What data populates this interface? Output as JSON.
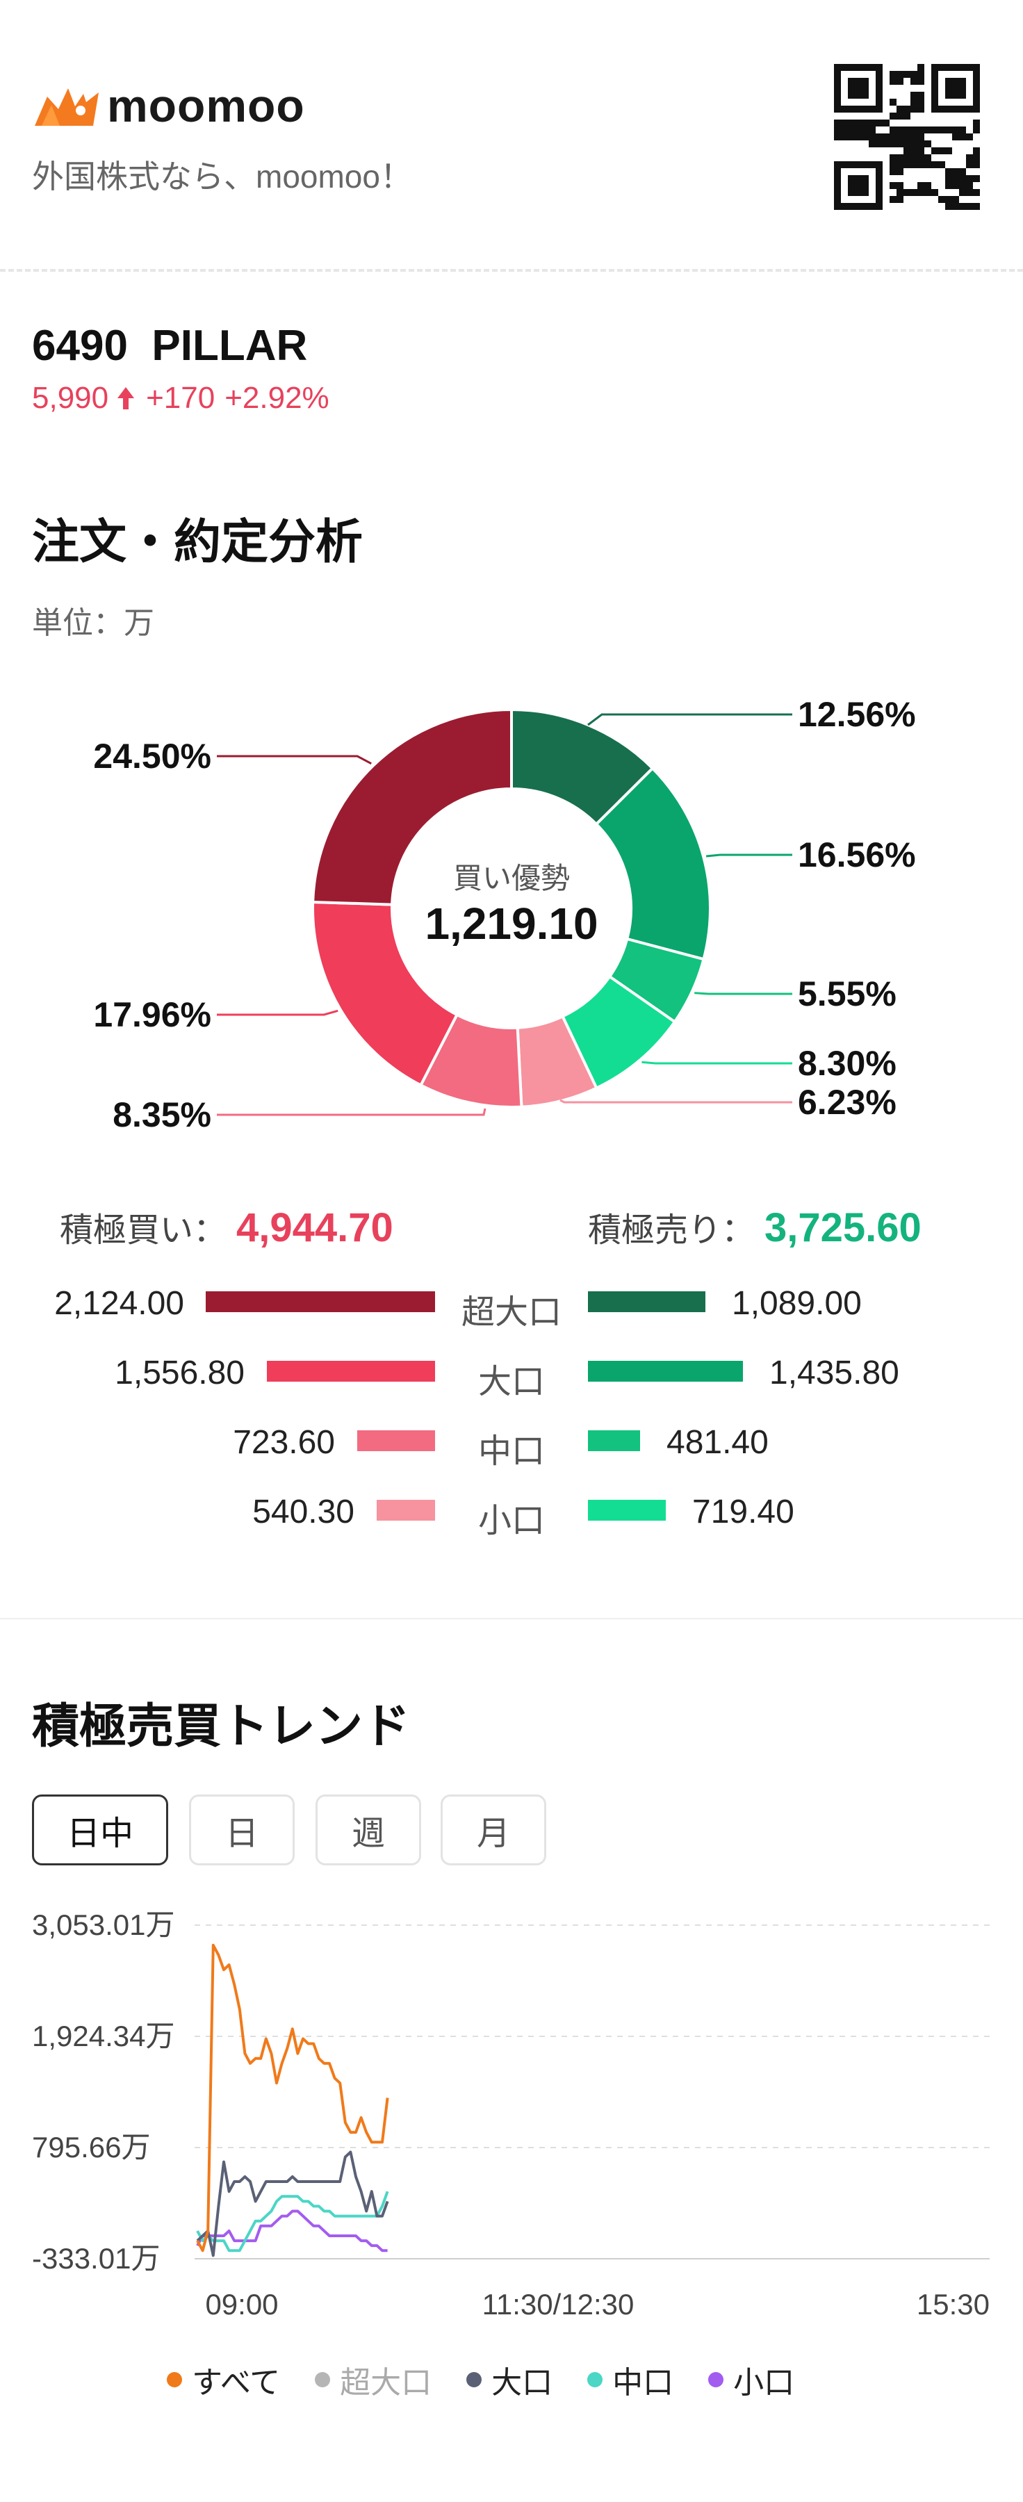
{
  "header": {
    "brand": "moomoo",
    "tagline": "外国株式なら、moomoo！"
  },
  "stock": {
    "code": "6490",
    "name": "PILLAR",
    "price": "5,990",
    "change": "+170",
    "change_pct": "+2.92%"
  },
  "order_analysis": {
    "title": "注文・約定分析",
    "unit": "単位：万",
    "center_label": "買い優勢",
    "center_value": "1,219.10",
    "buy_label": "積極買い：",
    "buy_total": "4,944.70",
    "sell_label": "積極売り：",
    "sell_total": "3,725.60",
    "rows": [
      {
        "category": "超大口",
        "buy": "2,124.00",
        "sell": "1,089.00"
      },
      {
        "category": "大口",
        "buy": "1,556.80",
        "sell": "1,435.80"
      },
      {
        "category": "中口",
        "buy": "723.60",
        "sell": "481.40"
      },
      {
        "category": "小口",
        "buy": "540.30",
        "sell": "719.40"
      }
    ]
  },
  "trend": {
    "title": "積極売買トレンド",
    "tabs": [
      "日中",
      "日",
      "週",
      "月"
    ],
    "active_tab": "日中",
    "legend": [
      "すべて",
      "超大口",
      "大口",
      "中口",
      "小口"
    ]
  },
  "colors": {
    "buy_super": "#9b1c31",
    "buy_large": "#ef3d5a",
    "buy_mid": "#f26b80",
    "buy_small": "#f7929f",
    "sell_super": "#176f4e",
    "sell_large": "#0aa56d",
    "sell_mid": "#12c27e",
    "sell_small": "#13dd93",
    "all": "#f07a1a",
    "super": "#b5b5b5",
    "large": "#5a6176",
    "mid": "#4bd6c6",
    "small": "#a35cf0"
  },
  "chart_data": [
    {
      "type": "pie",
      "title": "",
      "center_label": "買い優勢",
      "center_value": "1,219.10",
      "slices": [
        {
          "label": "超大口 売り",
          "value": 12.56,
          "display": "12.56%"
        },
        {
          "label": "大口 売り",
          "value": 16.56,
          "display": "16.56%"
        },
        {
          "label": "中口 売り",
          "value": 5.55,
          "display": "5.55%"
        },
        {
          "label": "小口 売り",
          "value": 8.3,
          "display": "8.30%"
        },
        {
          "label": "小口 買い",
          "value": 6.23,
          "display": "6.23%"
        },
        {
          "label": "中口 買い",
          "value": 8.35,
          "display": "8.35%"
        },
        {
          "label": "大口 買い",
          "value": 17.96,
          "display": "17.96%"
        },
        {
          "label": "超大口 買い",
          "value": 24.5,
          "display": "24.50%"
        }
      ]
    },
    {
      "type": "line",
      "title": "積極売買トレンド",
      "xlabel": "",
      "ylabel": "",
      "x_ticks": [
        "09:00",
        "11:30/12:30",
        "15:30"
      ],
      "y_ticks": [
        "3,053.01万",
        "1,924.34万",
        "795.66万",
        "-333.01万"
      ],
      "ylim": [
        -333.01,
        3053.01
      ],
      "x_domain": [
        0,
        300
      ],
      "grid": true,
      "series": [
        {
          "name": "すべて",
          "points": [
            [
              0,
              -150
            ],
            [
              2,
              -250
            ],
            [
              4,
              -50
            ],
            [
              6,
              2850
            ],
            [
              8,
              2750
            ],
            [
              10,
              2600
            ],
            [
              12,
              2650
            ],
            [
              14,
              2450
            ],
            [
              16,
              2200
            ],
            [
              18,
              1750
            ],
            [
              20,
              1650
            ],
            [
              22,
              1700
            ],
            [
              24,
              1700
            ],
            [
              26,
              1900
            ],
            [
              28,
              1750
            ],
            [
              30,
              1450
            ],
            [
              32,
              1650
            ],
            [
              34,
              1800
            ],
            [
              36,
              2000
            ],
            [
              38,
              1750
            ],
            [
              40,
              1900
            ],
            [
              42,
              1850
            ],
            [
              44,
              1850
            ],
            [
              46,
              1700
            ],
            [
              48,
              1650
            ],
            [
              50,
              1650
            ],
            [
              52,
              1500
            ],
            [
              54,
              1450
            ],
            [
              56,
              1050
            ],
            [
              58,
              950
            ],
            [
              60,
              950
            ],
            [
              62,
              1100
            ],
            [
              64,
              950
            ],
            [
              66,
              850
            ],
            [
              68,
              850
            ],
            [
              70,
              850
            ],
            [
              72,
              1300
            ]
          ]
        },
        {
          "name": "大口",
          "points": [
            [
              0,
              -150
            ],
            [
              2,
              -100
            ],
            [
              4,
              -50
            ],
            [
              6,
              -300
            ],
            [
              8,
              200
            ],
            [
              10,
              650
            ],
            [
              12,
              350
            ],
            [
              14,
              450
            ],
            [
              16,
              450
            ],
            [
              18,
              500
            ],
            [
              20,
              450
            ],
            [
              22,
              250
            ],
            [
              24,
              350
            ],
            [
              26,
              450
            ],
            [
              28,
              450
            ],
            [
              30,
              450
            ],
            [
              32,
              450
            ],
            [
              34,
              450
            ],
            [
              36,
              500
            ],
            [
              38,
              450
            ],
            [
              40,
              450
            ],
            [
              42,
              450
            ],
            [
              44,
              450
            ],
            [
              46,
              450
            ],
            [
              48,
              450
            ],
            [
              50,
              450
            ],
            [
              52,
              450
            ],
            [
              54,
              450
            ],
            [
              56,
              700
            ],
            [
              58,
              750
            ],
            [
              60,
              500
            ],
            [
              62,
              350
            ],
            [
              64,
              150
            ],
            [
              66,
              350
            ],
            [
              68,
              100
            ],
            [
              70,
              100
            ],
            [
              72,
              250
            ]
          ]
        },
        {
          "name": "中口",
          "points": [
            [
              0,
              -50
            ],
            [
              2,
              -150
            ],
            [
              4,
              -100
            ],
            [
              6,
              -150
            ],
            [
              8,
              -150
            ],
            [
              10,
              -150
            ],
            [
              12,
              -250
            ],
            [
              14,
              -250
            ],
            [
              16,
              -250
            ],
            [
              18,
              -150
            ],
            [
              20,
              -50
            ],
            [
              22,
              50
            ],
            [
              24,
              50
            ],
            [
              26,
              100
            ],
            [
              28,
              150
            ],
            [
              30,
              250
            ],
            [
              32,
              300
            ],
            [
              34,
              300
            ],
            [
              36,
              300
            ],
            [
              38,
              300
            ],
            [
              40,
              250
            ],
            [
              42,
              250
            ],
            [
              44,
              200
            ],
            [
              46,
              200
            ],
            [
              48,
              150
            ],
            [
              50,
              150
            ],
            [
              52,
              100
            ],
            [
              54,
              100
            ],
            [
              56,
              100
            ],
            [
              58,
              100
            ],
            [
              60,
              100
            ],
            [
              62,
              100
            ],
            [
              64,
              100
            ],
            [
              66,
              100
            ],
            [
              68,
              100
            ],
            [
              70,
              200
            ],
            [
              72,
              350
            ]
          ]
        },
        {
          "name": "小口",
          "points": [
            [
              0,
              -200
            ],
            [
              2,
              -100
            ],
            [
              4,
              -100
            ],
            [
              6,
              -100
            ],
            [
              8,
              -100
            ],
            [
              10,
              -100
            ],
            [
              12,
              -50
            ],
            [
              14,
              -150
            ],
            [
              16,
              -150
            ],
            [
              18,
              -150
            ],
            [
              20,
              -150
            ],
            [
              22,
              -150
            ],
            [
              24,
              0
            ],
            [
              26,
              0
            ],
            [
              28,
              0
            ],
            [
              30,
              50
            ],
            [
              32,
              100
            ],
            [
              34,
              100
            ],
            [
              36,
              150
            ],
            [
              38,
              150
            ],
            [
              40,
              100
            ],
            [
              42,
              50
            ],
            [
              44,
              0
            ],
            [
              46,
              0
            ],
            [
              48,
              -50
            ],
            [
              50,
              -100
            ],
            [
              52,
              -100
            ],
            [
              54,
              -100
            ],
            [
              56,
              -100
            ],
            [
              58,
              -100
            ],
            [
              60,
              -100
            ],
            [
              62,
              -150
            ],
            [
              64,
              -150
            ],
            [
              66,
              -200
            ],
            [
              68,
              -200
            ],
            [
              70,
              -250
            ],
            [
              72,
              -250
            ]
          ]
        }
      ]
    }
  ]
}
